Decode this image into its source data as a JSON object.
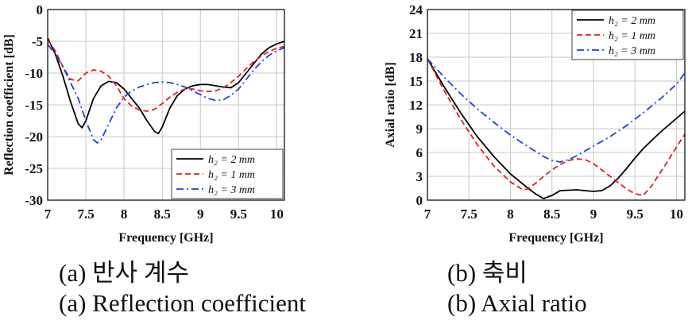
{
  "chart_data": [
    {
      "type": "line",
      "title": "",
      "xlabel": "Frequency [GHz]",
      "ylabel": "Reflection coefficient [dB]",
      "xlim": [
        7,
        10.1
      ],
      "ylim": [
        -30,
        0
      ],
      "xticks": [
        "7",
        "7.5",
        "8",
        "8.5",
        "9",
        "9.5",
        "10"
      ],
      "yticks": [
        "0",
        "-5",
        "-10",
        "-15",
        "-20",
        "-25",
        "-30"
      ],
      "grid": true,
      "legend_position": "bottom-right",
      "series": [
        {
          "name": "h₂ = 2 mm",
          "color": "#000000",
          "style": "solid",
          "x": [
            7.0,
            7.1,
            7.2,
            7.3,
            7.4,
            7.45,
            7.5,
            7.6,
            7.7,
            7.8,
            7.9,
            8.0,
            8.1,
            8.2,
            8.3,
            8.4,
            8.45,
            8.5,
            8.6,
            8.7,
            8.8,
            8.9,
            9.0,
            9.1,
            9.2,
            9.3,
            9.4,
            9.5,
            9.6,
            9.7,
            9.8,
            9.9,
            10.0,
            10.1
          ],
          "y": [
            -4.5,
            -7,
            -10.5,
            -14.5,
            -18,
            -18.6,
            -17.5,
            -14,
            -12,
            -11.3,
            -11.5,
            -12.5,
            -14,
            -15.5,
            -17.5,
            -19.2,
            -19.5,
            -18.5,
            -15.5,
            -13.5,
            -12.5,
            -12,
            -11.8,
            -11.8,
            -12,
            -12.2,
            -12.3,
            -11.5,
            -10,
            -8.5,
            -7,
            -6,
            -5.4,
            -5
          ]
        },
        {
          "name": "h₂ = 1 mm",
          "color": "#e02020",
          "style": "dashed",
          "x": [
            7.0,
            7.1,
            7.2,
            7.3,
            7.4,
            7.5,
            7.6,
            7.7,
            7.8,
            7.9,
            8.0,
            8.1,
            8.2,
            8.3,
            8.4,
            8.5,
            8.6,
            8.7,
            8.8,
            8.9,
            9.0,
            9.1,
            9.2,
            9.3,
            9.4,
            9.5,
            9.6,
            9.7,
            9.8,
            9.9,
            10.0,
            10.1
          ],
          "y": [
            -4.8,
            -6.5,
            -9,
            -11,
            -11.2,
            -10,
            -9.5,
            -9.7,
            -10.5,
            -12,
            -14,
            -15.2,
            -15.8,
            -16,
            -15.7,
            -14.8,
            -13.8,
            -13,
            -12.5,
            -12.5,
            -12.8,
            -12.9,
            -12.8,
            -12.3,
            -11.5,
            -10.5,
            -9.3,
            -8.2,
            -7.3,
            -6.6,
            -6.1,
            -5.8
          ]
        },
        {
          "name": "h₂ = 3 mm",
          "color": "#1f3fe0",
          "style": "dashdot",
          "x": [
            7.0,
            7.1,
            7.2,
            7.3,
            7.4,
            7.5,
            7.6,
            7.65,
            7.7,
            7.8,
            7.9,
            8.0,
            8.1,
            8.2,
            8.3,
            8.4,
            8.5,
            8.6,
            8.7,
            8.8,
            8.9,
            9.0,
            9.1,
            9.2,
            9.3,
            9.4,
            9.5,
            9.6,
            9.7,
            9.8,
            9.9,
            10.0,
            10.1
          ],
          "y": [
            -5.5,
            -7,
            -9,
            -11.5,
            -14,
            -17.5,
            -20.5,
            -21,
            -20.5,
            -18,
            -15.5,
            -13.8,
            -12.8,
            -12.2,
            -11.8,
            -11.5,
            -11.4,
            -11.5,
            -11.8,
            -12.2,
            -12.8,
            -13.4,
            -14,
            -14.3,
            -14.2,
            -13.5,
            -12.5,
            -11,
            -9.5,
            -8.2,
            -7.2,
            -6.5,
            -6
          ]
        }
      ]
    },
    {
      "type": "line",
      "title": "",
      "xlabel": "Frequency [GHz]",
      "ylabel": "Axial ratio [dB]",
      "xlim": [
        7,
        10.1
      ],
      "ylim": [
        0,
        24
      ],
      "xticks": [
        "7",
        "7.5",
        "8",
        "8.5",
        "9",
        "9.5",
        "10"
      ],
      "yticks": [
        "24",
        "21",
        "18",
        "15",
        "12",
        "9",
        "6",
        "3",
        "0"
      ],
      "grid": true,
      "legend_position": "top-right",
      "series": [
        {
          "name": "h₂ = 2 mm",
          "color": "#000000",
          "style": "solid",
          "x": [
            7.0,
            7.2,
            7.4,
            7.6,
            7.8,
            8.0,
            8.2,
            8.3,
            8.4,
            8.5,
            8.6,
            8.8,
            9.0,
            9.1,
            9.2,
            9.3,
            9.4,
            9.5,
            9.6,
            9.8,
            10.0,
            10.1
          ],
          "y": [
            17.8,
            14.3,
            11,
            8,
            5.5,
            3.3,
            1.6,
            0.8,
            0.2,
            0.6,
            1.2,
            1.3,
            1.1,
            1.2,
            1.8,
            2.8,
            4,
            5.3,
            6.5,
            8.5,
            10.3,
            11.2
          ]
        },
        {
          "name": "h₂ = 1 mm",
          "color": "#e02020",
          "style": "dashed",
          "x": [
            7.0,
            7.2,
            7.4,
            7.6,
            7.8,
            8.0,
            8.15,
            8.2,
            8.3,
            8.4,
            8.5,
            8.6,
            8.7,
            8.8,
            8.9,
            9.0,
            9.1,
            9.2,
            9.3,
            9.4,
            9.5,
            9.6,
            9.7,
            9.8,
            9.9,
            10.0,
            10.1
          ],
          "y": [
            17.8,
            13.8,
            10.2,
            7,
            4.3,
            2.3,
            1.3,
            1.4,
            2.1,
            3,
            3.8,
            4.5,
            5,
            5.2,
            5.1,
            4.6,
            3.8,
            3,
            2.2,
            1.4,
            0.8,
            0.6,
            1.8,
            3.4,
            5,
            6.7,
            8.3
          ]
        },
        {
          "name": "h₂ = 3 mm",
          "color": "#1f3fe0",
          "style": "dashdot",
          "x": [
            7.0,
            7.2,
            7.4,
            7.6,
            7.8,
            8.0,
            8.2,
            8.4,
            8.5,
            8.6,
            8.7,
            8.8,
            9.0,
            9.2,
            9.4,
            9.6,
            9.8,
            10.0,
            10.1
          ],
          "y": [
            17.8,
            15.5,
            13.4,
            11.5,
            9.8,
            8.2,
            6.8,
            5.5,
            5,
            4.8,
            5.1,
            5.6,
            6.8,
            8,
            9.4,
            11,
            12.7,
            14.6,
            16
          ]
        }
      ]
    }
  ],
  "captions": {
    "left_korean": "(a) 반사 계수",
    "left_english": "(a) Reflection coefficient",
    "right_korean": "(b) 축비",
    "right_english": "(b) Axial ratio"
  }
}
